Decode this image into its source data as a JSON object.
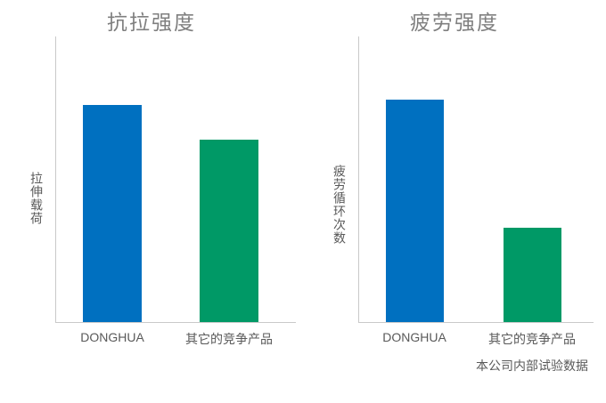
{
  "footnote": "本公司内部试验数据",
  "colors": {
    "donghua_blue": "#0070C0",
    "competitor_green": "#009966",
    "axis_line": "#C9C9C9",
    "title_text": "#7F7F7F",
    "label_text": "#595959",
    "background": "#FFFFFF"
  },
  "chart_data": [
    {
      "type": "bar",
      "title": "抗拉强度",
      "ylabel": "拉伸载荷",
      "xlabel": "",
      "categories": [
        "DONGHUA",
        "其它的竞争产品"
      ],
      "values": [
        76,
        64
      ],
      "ylim": [
        0,
        100
      ],
      "yticks": [],
      "grid": false,
      "legend": "none",
      "bar_colors": [
        "#0070C0",
        "#009966"
      ]
    },
    {
      "type": "bar",
      "title": "疲劳强度",
      "ylabel": "疲劳循环次数",
      "xlabel": "",
      "categories": [
        "DONGHUA",
        "其它的竞争产品"
      ],
      "values": [
        78,
        33
      ],
      "ylim": [
        0,
        100
      ],
      "yticks": [],
      "grid": false,
      "legend": "none",
      "bar_colors": [
        "#0070C0",
        "#009966"
      ]
    }
  ]
}
